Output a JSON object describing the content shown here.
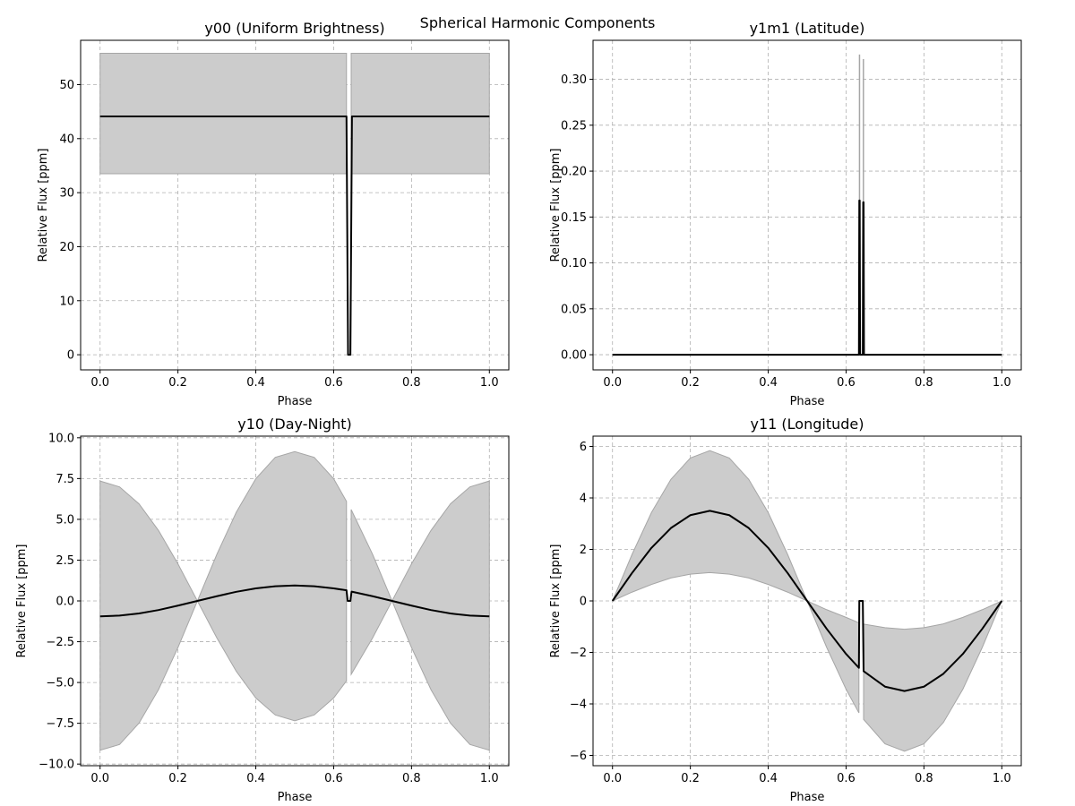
{
  "figure": {
    "suptitle": "Spherical Harmonic Components"
  },
  "colors": {
    "line": "#000000",
    "band_fill": "#cccccc",
    "band_edge": "#a6a6a6",
    "grid": "#b0b0b0"
  },
  "chart_data": [
    {
      "type": "line",
      "title": "y00 (Uniform Brightness)",
      "xlabel": "Phase",
      "ylabel": "Relative Flux [ppm]",
      "xlim": [
        -0.05,
        1.05
      ],
      "ylim": [
        -2.8,
        58.2
      ],
      "xticks": [
        0.0,
        0.2,
        0.4,
        0.6,
        0.8,
        1.0
      ],
      "xtick_labels": [
        "0.0",
        "0.2",
        "0.4",
        "0.6",
        "0.8",
        "1.0"
      ],
      "yticks": [
        0,
        10,
        20,
        30,
        40,
        50
      ],
      "ytick_labels": [
        "0",
        "10",
        "20",
        "30",
        "40",
        "50"
      ],
      "grid": true,
      "series": [
        {
          "role": "line",
          "x": [
            0.0,
            0.633,
            0.637,
            0.643,
            0.647,
            1.0
          ],
          "y": [
            44.1,
            44.1,
            0.0,
            0.0,
            44.1,
            44.1
          ]
        }
      ],
      "bands": [
        {
          "x": [
            0.0,
            0.633
          ],
          "lower": [
            33.5,
            33.5
          ],
          "upper": [
            55.8,
            55.8
          ]
        },
        {
          "x": [
            0.645,
            1.0
          ],
          "lower": [
            33.5,
            33.5
          ],
          "upper": [
            55.8,
            55.8
          ]
        }
      ]
    },
    {
      "type": "line",
      "title": "y1m1 (Latitude)",
      "xlabel": "Phase",
      "ylabel": "Relative Flux [ppm]",
      "xlim": [
        -0.05,
        1.05
      ],
      "ylim": [
        -0.0165,
        0.3425
      ],
      "xticks": [
        0.0,
        0.2,
        0.4,
        0.6,
        0.8,
        1.0
      ],
      "xtick_labels": [
        "0.0",
        "0.2",
        "0.4",
        "0.6",
        "0.8",
        "1.0"
      ],
      "yticks": [
        0.0,
        0.05,
        0.1,
        0.15,
        0.2,
        0.25,
        0.3
      ],
      "ytick_labels": [
        "0.00",
        "0.05",
        "0.10",
        "0.15",
        "0.20",
        "0.25",
        "0.30"
      ],
      "grid": true,
      "series": [
        {
          "role": "line",
          "x": [
            0.0,
            0.633,
            0.634,
            0.635,
            0.636,
            0.643,
            0.644,
            0.645,
            0.646,
            1.0
          ],
          "y": [
            0.0,
            0.0,
            0.168,
            0.168,
            0.0,
            0.0,
            0.166,
            0.166,
            0.0,
            0.0
          ]
        }
      ],
      "spikes": [
        {
          "x": 0.6345,
          "upper": 0.327
        },
        {
          "x": 0.6445,
          "upper": 0.322
        }
      ]
    },
    {
      "type": "line",
      "title": "y10 (Day-Night)",
      "xlabel": "Phase",
      "ylabel": "Relative Flux [ppm]",
      "xlim": [
        -0.05,
        1.05
      ],
      "ylim": [
        -10.1,
        10.1
      ],
      "xticks": [
        0.0,
        0.2,
        0.4,
        0.6,
        0.8,
        1.0
      ],
      "xtick_labels": [
        "0.0",
        "0.2",
        "0.4",
        "0.6",
        "0.8",
        "1.0"
      ],
      "yticks": [
        -10.0,
        -7.5,
        -5.0,
        -2.5,
        0.0,
        2.5,
        5.0,
        7.5,
        10.0
      ],
      "ytick_labels": [
        "−10.0",
        "−7.5",
        "−5.0",
        "−2.5",
        "0.0",
        "2.5",
        "5.0",
        "7.5",
        "10.0"
      ],
      "grid": true,
      "series": [
        {
          "role": "line",
          "x": [
            0.0,
            0.05,
            0.1,
            0.15,
            0.2,
            0.25,
            0.3,
            0.35,
            0.4,
            0.45,
            0.5,
            0.55,
            0.6,
            0.633,
            0.636,
            0.643,
            0.646,
            0.7,
            0.75,
            0.8,
            0.85,
            0.9,
            0.95,
            1.0
          ],
          "y": [
            -0.95,
            -0.9,
            -0.77,
            -0.56,
            -0.29,
            0.0,
            0.29,
            0.56,
            0.77,
            0.9,
            0.95,
            0.9,
            0.77,
            0.65,
            0.0,
            0.0,
            0.57,
            0.29,
            0.0,
            -0.29,
            -0.56,
            -0.77,
            -0.9,
            -0.95
          ]
        }
      ],
      "bands": [
        {
          "x": [
            0.0,
            0.05,
            0.1,
            0.15,
            0.2,
            0.25,
            0.3,
            0.35,
            0.4,
            0.45,
            0.5,
            0.55,
            0.6,
            0.633
          ],
          "upper": [
            7.35,
            6.99,
            5.95,
            4.32,
            2.27,
            0.0,
            2.86,
            5.44,
            7.49,
            8.8,
            9.15,
            8.8,
            7.49,
            6.1
          ],
          "lower": [
            -9.15,
            -8.8,
            -7.49,
            -5.44,
            -2.86,
            0.0,
            -2.27,
            -4.32,
            -5.95,
            -6.99,
            -7.35,
            -6.99,
            -5.95,
            -4.9
          ]
        },
        {
          "x": [
            0.645,
            0.7,
            0.75,
            0.8,
            0.85,
            0.9,
            0.95,
            1.0
          ],
          "upper": [
            5.6,
            2.86,
            0.0,
            2.27,
            4.32,
            5.95,
            6.99,
            7.35
          ],
          "lower": [
            -4.5,
            -2.27,
            0.0,
            -2.86,
            -5.44,
            -7.49,
            -8.8,
            -9.15
          ]
        }
      ]
    },
    {
      "type": "line",
      "title": "y11 (Longitude)",
      "xlabel": "Phase",
      "ylabel": "Relative Flux [ppm]",
      "xlim": [
        -0.05,
        1.05
      ],
      "ylim": [
        -6.4,
        6.4
      ],
      "xticks": [
        0.0,
        0.2,
        0.4,
        0.6,
        0.8,
        1.0
      ],
      "xtick_labels": [
        "0.0",
        "0.2",
        "0.4",
        "0.6",
        "0.8",
        "1.0"
      ],
      "yticks": [
        -6,
        -4,
        -2,
        0,
        2,
        4,
        6
      ],
      "ytick_labels": [
        "−6",
        "−4",
        "−2",
        "0",
        "2",
        "4",
        "6"
      ],
      "grid": true,
      "series": [
        {
          "role": "line",
          "x": [
            0.0,
            0.05,
            0.1,
            0.15,
            0.2,
            0.25,
            0.3,
            0.35,
            0.4,
            0.45,
            0.5,
            0.55,
            0.6,
            0.633,
            0.634,
            0.643,
            0.645,
            0.7,
            0.75,
            0.8,
            0.85,
            0.9,
            0.95,
            1.0
          ],
          "y": [
            0.0,
            1.08,
            2.06,
            2.83,
            3.33,
            3.5,
            3.33,
            2.83,
            2.06,
            1.08,
            0.0,
            -1.08,
            -2.06,
            -2.6,
            0.0,
            0.0,
            -2.73,
            -3.33,
            -3.5,
            -3.33,
            -2.83,
            -2.06,
            -1.08,
            0.0
          ]
        }
      ],
      "bands": [
        {
          "x": [
            0.0,
            0.05,
            0.1,
            0.15,
            0.2,
            0.25,
            0.3,
            0.35,
            0.4,
            0.45,
            0.5,
            0.55,
            0.6,
            0.633
          ],
          "upper": [
            0.0,
            1.8,
            3.43,
            4.72,
            5.55,
            5.84,
            5.55,
            4.72,
            3.43,
            1.8,
            0.0,
            -0.34,
            -0.64,
            -0.85
          ],
          "lower": [
            0.0,
            0.34,
            0.64,
            0.89,
            1.04,
            1.1,
            1.04,
            0.89,
            0.64,
            0.34,
            0.0,
            -1.8,
            -3.43,
            -4.35
          ]
        },
        {
          "x": [
            0.645,
            0.7,
            0.75,
            0.8,
            0.85,
            0.9,
            0.95,
            1.0
          ],
          "upper": [
            -0.9,
            -1.04,
            -1.1,
            -1.04,
            -0.89,
            -0.64,
            -0.34,
            0.0
          ],
          "lower": [
            -4.6,
            -5.55,
            -5.84,
            -5.55,
            -4.72,
            -3.43,
            -1.8,
            0.0
          ]
        }
      ]
    }
  ]
}
